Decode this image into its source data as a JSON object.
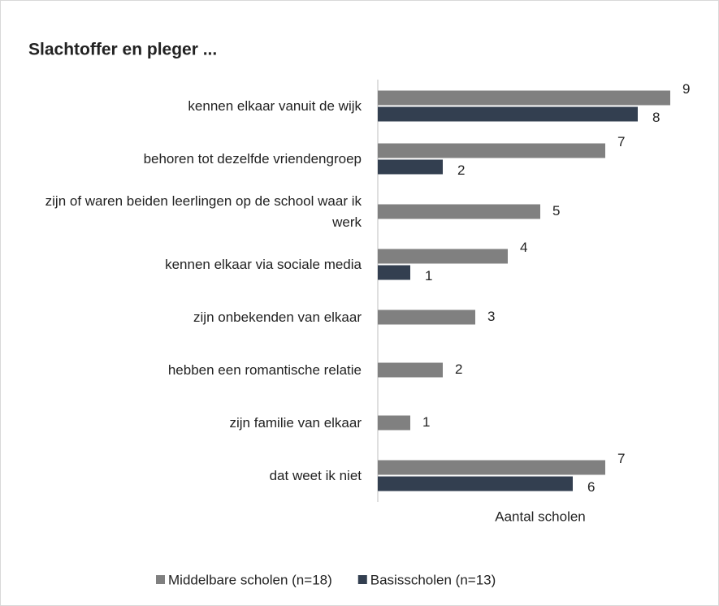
{
  "chart_data": {
    "type": "bar",
    "orientation": "horizontal",
    "title": "Slachtoffer en pleger ...",
    "x_label": "Aantal scholen",
    "categories": [
      "kennen elkaar vanuit de wijk",
      "behoren tot dezelfde vriendengroep",
      "zijn of waren beiden leerlingen op de school waar ik werk",
      "kennen elkaar via sociale media",
      "zijn onbekenden van elkaar",
      "hebben een romantische relatie",
      "zijn familie van elkaar",
      "dat weet ik niet"
    ],
    "series": [
      {
        "name": "Middelbare scholen (n=18)",
        "color": "#808080",
        "values": [
          9,
          7,
          5,
          4,
          3,
          2,
          1,
          7
        ]
      },
      {
        "name": "Basisscholen (n=13)",
        "color": "#333f50",
        "values": [
          8,
          2,
          null,
          1,
          null,
          null,
          null,
          6
        ]
      }
    ],
    "xlim": [
      0,
      10
    ],
    "legend": "bottom"
  }
}
